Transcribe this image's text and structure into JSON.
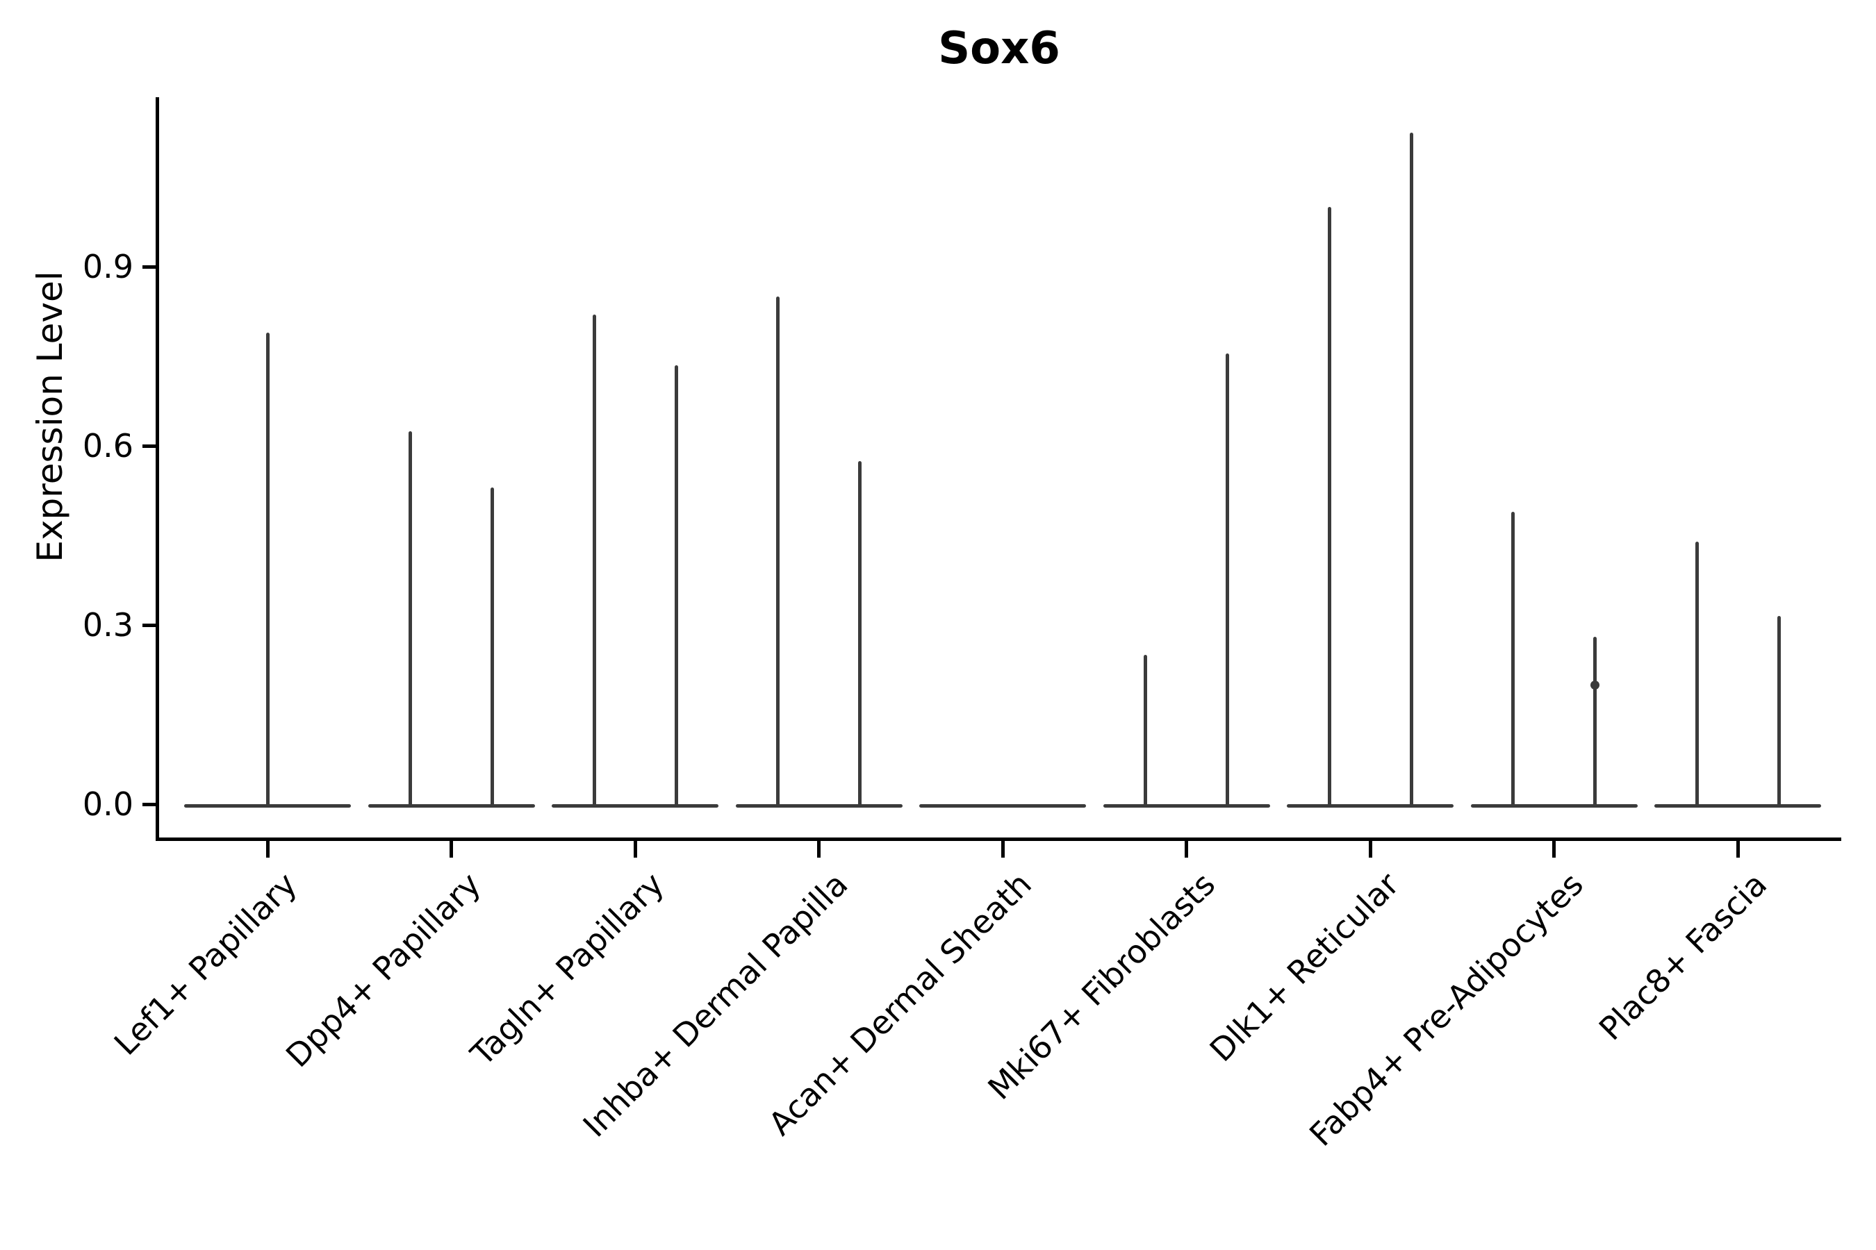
{
  "chart_data": {
    "type": "violin",
    "title": "Sox6",
    "ylabel": "Expression Level",
    "xlabel": "",
    "ytick_labels": [
      "0.0",
      "0.3",
      "0.6",
      "0.9"
    ],
    "ytick_values": [
      0.0,
      0.3,
      0.6,
      0.9
    ],
    "ylim": [
      0.0,
      1.19
    ],
    "grid": false,
    "legend": "none",
    "baseline_value": 0.0,
    "note": "Each category shows a flat density baseline at expression 0 with thin spikes rising to the max expression of each group; Acan+ Dermal Sheath is all zeros.",
    "categories": [
      {
        "label": "Lef1+ Papillary",
        "violins": [
          {
            "side": "center",
            "offset": 0,
            "max": 0.79
          }
        ]
      },
      {
        "label": "Dpp4+ Papillary",
        "violins": [
          {
            "side": "left",
            "offset": -59,
            "max": 0.625
          },
          {
            "side": "right",
            "offset": 59,
            "max": 0.53
          }
        ]
      },
      {
        "label": "Tagln+ Papillary",
        "violins": [
          {
            "side": "left",
            "offset": -59,
            "max": 0.82
          },
          {
            "side": "right",
            "offset": 59,
            "max": 0.735
          }
        ]
      },
      {
        "label": "Inhba+ Dermal Papilla",
        "violins": [
          {
            "side": "left",
            "offset": -59,
            "max": 0.85
          },
          {
            "side": "right",
            "offset": 59,
            "max": 0.575
          }
        ]
      },
      {
        "label": "Acan+ Dermal Sheath",
        "violins": []
      },
      {
        "label": "Mki67+ Fibroblasts",
        "violins": [
          {
            "side": "left",
            "offset": -59,
            "max": 0.25
          },
          {
            "side": "right",
            "offset": 59,
            "max": 0.755
          }
        ]
      },
      {
        "label": "Dlk1+ Reticular",
        "violins": [
          {
            "side": "left",
            "offset": -59,
            "max": 1.0
          },
          {
            "side": "right",
            "offset": 59,
            "max": 1.125
          }
        ]
      },
      {
        "label": "Fabp4+ Pre-Adipocytes",
        "violins": [
          {
            "side": "left",
            "offset": -59,
            "max": 0.49
          },
          {
            "side": "right",
            "offset": 59,
            "max": 0.28,
            "knot": 0.2
          }
        ]
      },
      {
        "label": "Plac8+ Fascia",
        "violins": [
          {
            "side": "left",
            "offset": -59,
            "max": 0.44
          },
          {
            "side": "right",
            "offset": 59,
            "max": 0.315
          }
        ]
      }
    ],
    "colors": {
      "violin": "#3b3b3b",
      "axis": "#000000",
      "text": "#000000",
      "background": "#ffffff"
    }
  }
}
